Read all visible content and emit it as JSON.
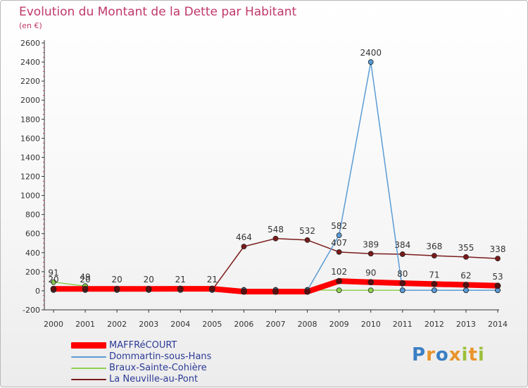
{
  "header": {
    "title": "Evolution du Montant de la Dette par Habitant",
    "unit": "(en €)"
  },
  "brand": {
    "text": "Proxiti",
    "colors": [
      "#3b7fc4",
      "#e8942c",
      "#3b7fc4",
      "#e8942c",
      "#9bbf3b",
      "#e8942c",
      "#9bbf3b"
    ]
  },
  "chart_data": {
    "type": "line",
    "x": [
      2000,
      2001,
      2002,
      2003,
      2004,
      2005,
      2006,
      2007,
      2008,
      2009,
      2010,
      2011,
      2012,
      2013,
      2014
    ],
    "ylim": [
      -200,
      2600
    ],
    "yticks": [
      -200,
      0,
      200,
      400,
      600,
      800,
      1000,
      1200,
      1400,
      1600,
      1800,
      2000,
      2200,
      2400,
      2600
    ],
    "grid": false,
    "legend_position": "bottom-left",
    "series": [
      {
        "name": "MAFFRéCOURT",
        "color": "#ff0000",
        "values": [
          20,
          20,
          20,
          20,
          21,
          21,
          -9,
          -9,
          -9,
          102,
          90,
          80,
          71,
          62,
          53
        ],
        "labels": [
          "20",
          "20",
          "20",
          "20",
          "21",
          "21",
          "",
          "",
          "",
          "102",
          "90",
          "80",
          "71",
          "62",
          "53"
        ]
      },
      {
        "name": "Dommartin-sous-Hans",
        "color": "#5b9bd5",
        "values": [
          8,
          8,
          8,
          8,
          8,
          8,
          5,
          5,
          5,
          582,
          2400,
          5,
          5,
          5,
          5
        ],
        "labels": [
          "",
          "",
          "",
          "",
          "",
          "",
          "",
          "",
          "",
          "582",
          "2400",
          "",
          "",
          "",
          ""
        ]
      },
      {
        "name": "Braux-Sainte-Cohière",
        "color": "#8fd14f",
        "values": [
          91,
          49,
          10,
          10,
          10,
          10,
          10,
          10,
          10,
          5,
          5,
          5,
          5,
          5,
          5
        ],
        "labels": [
          "91",
          "49",
          "",
          "",
          "",
          "",
          "",
          "",
          "",
          "",
          "",
          "",
          "",
          "",
          ""
        ]
      },
      {
        "name": "La Neuville-au-Pont",
        "color": "#7b1a1a",
        "values": [
          8,
          8,
          8,
          8,
          8,
          8,
          464,
          548,
          532,
          407,
          389,
          384,
          368,
          355,
          338
        ],
        "labels": [
          "",
          "",
          "",
          "",
          "",
          "",
          "464",
          "548",
          "532",
          "407",
          "389",
          "384",
          "368",
          "355",
          "338"
        ]
      }
    ]
  }
}
